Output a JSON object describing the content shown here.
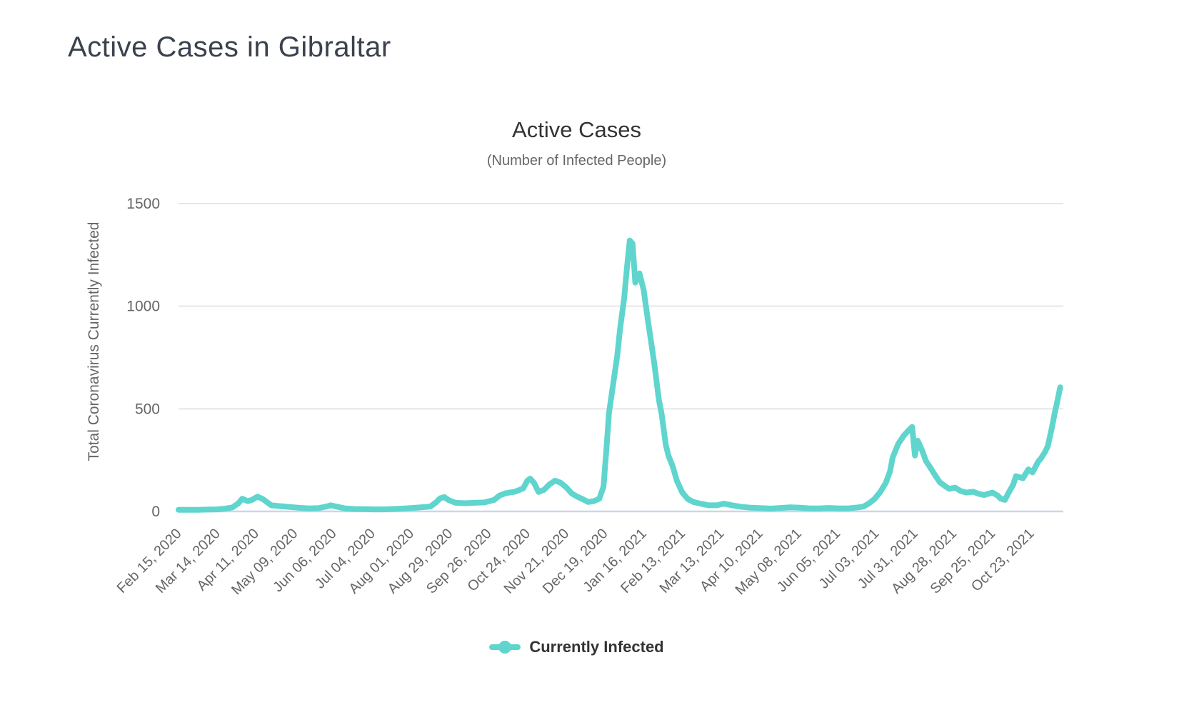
{
  "page": {
    "title": "Active Cases in Gibraltar"
  },
  "chart": {
    "title": "Active Cases",
    "subtitle": "(Number of Infected People)",
    "y_axis_title": "Total Coronavirus Currently Infected",
    "legend": [
      {
        "label": "Currently Infected",
        "color": "#5fd5ce"
      }
    ]
  },
  "chart_data": {
    "type": "line",
    "title": "Active Cases",
    "subtitle": "(Number of Infected People)",
    "xlabel": "",
    "ylabel": "Total Coronavirus Currently Infected",
    "ylim": [
      0,
      1500
    ],
    "yticks": [
      0,
      500,
      1000,
      1500
    ],
    "xtick_labels": [
      "Feb 15, 2020",
      "Mar 14, 2020",
      "Apr 11, 2020",
      "May 09, 2020",
      "Jun 06, 2020",
      "Jul 04, 2020",
      "Aug 01, 2020",
      "Aug 29, 2020",
      "Sep 26, 2020",
      "Oct 24, 2020",
      "Nov 21, 2020",
      "Dec 19, 2020",
      "Jan 16, 2021",
      "Feb 13, 2021",
      "Mar 13, 2021",
      "Apr 10, 2021",
      "May 08, 2021",
      "Jun 05, 2021",
      "Jul 03, 2021",
      "Jul 31, 2021",
      "Aug 28, 2021",
      "Sep 25, 2021",
      "Oct 23, 2021"
    ],
    "grid": "horizontal",
    "legend_position": "bottom",
    "colors": {
      "series": "#5fd5ce",
      "grid": "#e6e6e6",
      "axis_line": "#ccd6eb",
      "tick_text": "#666666"
    },
    "series": [
      {
        "name": "Currently Infected",
        "color": "#5fd5ce",
        "points": [
          [
            "2020-02-15",
            8
          ],
          [
            "2020-02-22",
            8
          ],
          [
            "2020-02-29",
            8
          ],
          [
            "2020-03-07",
            9
          ],
          [
            "2020-03-14",
            10
          ],
          [
            "2020-03-20",
            14
          ],
          [
            "2020-03-25",
            20
          ],
          [
            "2020-03-29",
            38
          ],
          [
            "2020-04-01",
            62
          ],
          [
            "2020-04-05",
            50
          ],
          [
            "2020-04-08",
            56
          ],
          [
            "2020-04-12",
            72
          ],
          [
            "2020-04-16",
            60
          ],
          [
            "2020-04-22",
            30
          ],
          [
            "2020-04-28",
            26
          ],
          [
            "2020-05-05",
            22
          ],
          [
            "2020-05-12",
            18
          ],
          [
            "2020-05-19",
            15
          ],
          [
            "2020-05-26",
            16
          ],
          [
            "2020-06-01",
            24
          ],
          [
            "2020-06-04",
            30
          ],
          [
            "2020-06-08",
            24
          ],
          [
            "2020-06-14",
            15
          ],
          [
            "2020-06-21",
            12
          ],
          [
            "2020-06-28",
            11
          ],
          [
            "2020-07-05",
            10
          ],
          [
            "2020-07-12",
            10
          ],
          [
            "2020-07-19",
            12
          ],
          [
            "2020-07-26",
            14
          ],
          [
            "2020-08-02",
            17
          ],
          [
            "2020-08-08",
            20
          ],
          [
            "2020-08-15",
            24
          ],
          [
            "2020-08-19",
            44
          ],
          [
            "2020-08-22",
            64
          ],
          [
            "2020-08-25",
            70
          ],
          [
            "2020-08-28",
            56
          ],
          [
            "2020-09-02",
            42
          ],
          [
            "2020-09-09",
            40
          ],
          [
            "2020-09-16",
            42
          ],
          [
            "2020-09-23",
            44
          ],
          [
            "2020-09-30",
            56
          ],
          [
            "2020-10-04",
            78
          ],
          [
            "2020-10-08",
            88
          ],
          [
            "2020-10-11",
            92
          ],
          [
            "2020-10-15",
            96
          ],
          [
            "2020-10-18",
            104
          ],
          [
            "2020-10-21",
            112
          ],
          [
            "2020-10-24",
            150
          ],
          [
            "2020-10-26",
            160
          ],
          [
            "2020-10-29",
            138
          ],
          [
            "2020-11-01",
            95
          ],
          [
            "2020-11-05",
            105
          ],
          [
            "2020-11-09",
            132
          ],
          [
            "2020-11-13",
            150
          ],
          [
            "2020-11-17",
            140
          ],
          [
            "2020-11-21",
            118
          ],
          [
            "2020-11-25",
            88
          ],
          [
            "2020-11-29",
            72
          ],
          [
            "2020-12-03",
            60
          ],
          [
            "2020-12-07",
            46
          ],
          [
            "2020-12-11",
            50
          ],
          [
            "2020-12-15",
            62
          ],
          [
            "2020-12-18",
            120
          ],
          [
            "2020-12-20",
            290
          ],
          [
            "2020-12-22",
            480
          ],
          [
            "2020-12-25",
            620
          ],
          [
            "2020-12-28",
            760
          ],
          [
            "2020-12-30",
            890
          ],
          [
            "2021-01-02",
            1040
          ],
          [
            "2021-01-04",
            1190
          ],
          [
            "2021-01-06",
            1320
          ],
          [
            "2021-01-08",
            1305
          ],
          [
            "2021-01-10",
            1115
          ],
          [
            "2021-01-13",
            1160
          ],
          [
            "2021-01-16",
            1080
          ],
          [
            "2021-01-19",
            935
          ],
          [
            "2021-01-22",
            800
          ],
          [
            "2021-01-24",
            705
          ],
          [
            "2021-01-27",
            545
          ],
          [
            "2021-01-29",
            475
          ],
          [
            "2021-02-01",
            325
          ],
          [
            "2021-02-03",
            270
          ],
          [
            "2021-02-06",
            220
          ],
          [
            "2021-02-09",
            150
          ],
          [
            "2021-02-13",
            92
          ],
          [
            "2021-02-17",
            60
          ],
          [
            "2021-02-21",
            46
          ],
          [
            "2021-02-26",
            38
          ],
          [
            "2021-03-04",
            30
          ],
          [
            "2021-03-10",
            30
          ],
          [
            "2021-03-15",
            38
          ],
          [
            "2021-03-21",
            30
          ],
          [
            "2021-03-28",
            22
          ],
          [
            "2021-04-04",
            18
          ],
          [
            "2021-04-11",
            16
          ],
          [
            "2021-04-18",
            14
          ],
          [
            "2021-04-25",
            17
          ],
          [
            "2021-05-02",
            20
          ],
          [
            "2021-05-09",
            18
          ],
          [
            "2021-05-16",
            15
          ],
          [
            "2021-05-23",
            15
          ],
          [
            "2021-05-30",
            17
          ],
          [
            "2021-06-06",
            15
          ],
          [
            "2021-06-13",
            15
          ],
          [
            "2021-06-20",
            20
          ],
          [
            "2021-06-24",
            24
          ],
          [
            "2021-06-28",
            40
          ],
          [
            "2021-07-02",
            62
          ],
          [
            "2021-07-06",
            95
          ],
          [
            "2021-07-10",
            140
          ],
          [
            "2021-07-13",
            195
          ],
          [
            "2021-07-15",
            265
          ],
          [
            "2021-07-19",
            330
          ],
          [
            "2021-07-23",
            370
          ],
          [
            "2021-07-26",
            392
          ],
          [
            "2021-07-29",
            412
          ],
          [
            "2021-07-31",
            272
          ],
          [
            "2021-08-02",
            345
          ],
          [
            "2021-08-05",
            300
          ],
          [
            "2021-08-08",
            245
          ],
          [
            "2021-08-11",
            215
          ],
          [
            "2021-08-15",
            172
          ],
          [
            "2021-08-18",
            142
          ],
          [
            "2021-08-22",
            122
          ],
          [
            "2021-08-25",
            110
          ],
          [
            "2021-08-29",
            116
          ],
          [
            "2021-09-02",
            100
          ],
          [
            "2021-09-06",
            92
          ],
          [
            "2021-09-11",
            96
          ],
          [
            "2021-09-15",
            86
          ],
          [
            "2021-09-19",
            80
          ],
          [
            "2021-09-25",
            92
          ],
          [
            "2021-09-29",
            76
          ],
          [
            "2021-10-01",
            62
          ],
          [
            "2021-10-04",
            56
          ],
          [
            "2021-10-07",
            95
          ],
          [
            "2021-10-10",
            130
          ],
          [
            "2021-10-12",
            172
          ],
          [
            "2021-10-17",
            162
          ],
          [
            "2021-10-21",
            205
          ],
          [
            "2021-10-24",
            190
          ],
          [
            "2021-10-28",
            242
          ],
          [
            "2021-10-30",
            258
          ],
          [
            "2021-11-02",
            290
          ],
          [
            "2021-11-04",
            318
          ],
          [
            "2021-11-07",
            410
          ],
          [
            "2021-11-09",
            480
          ],
          [
            "2021-11-11",
            540
          ],
          [
            "2021-11-13",
            605
          ]
        ]
      }
    ]
  }
}
